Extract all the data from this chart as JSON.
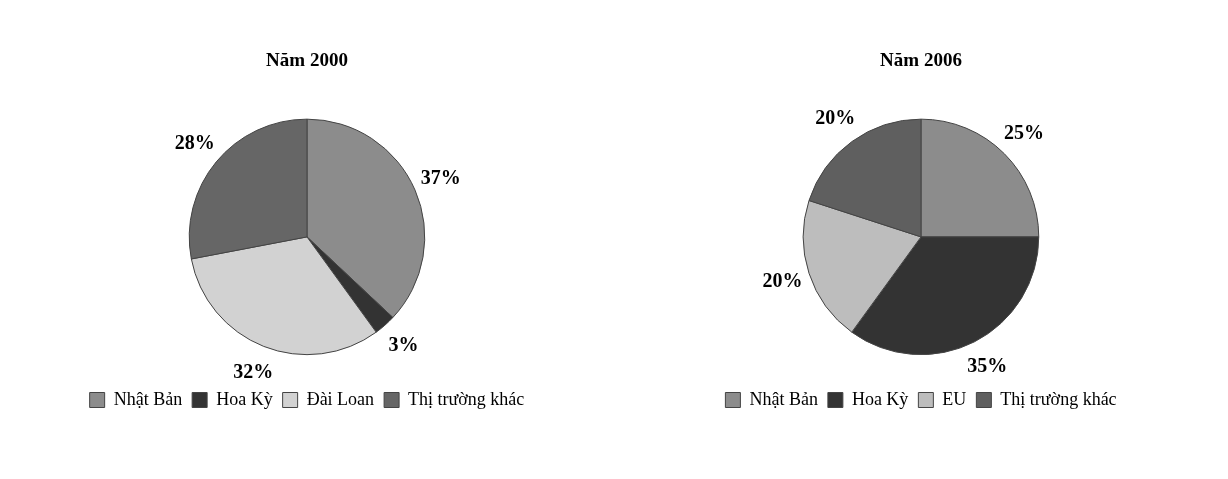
{
  "chart_data": [
    {
      "type": "pie",
      "title": "Năm 2000",
      "categories": [
        "Nhật Bản",
        "Hoa Kỳ",
        "Đài Loan",
        "Thị trường khác"
      ],
      "values": [
        37,
        3,
        32,
        28
      ],
      "value_labels": [
        "37%",
        "3%",
        "32%",
        "28%"
      ],
      "colors": [
        "#8c8c8c",
        "#333333",
        "#d2d2d2",
        "#666666"
      ],
      "legend": "bottom"
    },
    {
      "type": "pie",
      "title": "Năm 2006",
      "categories": [
        "Nhật Bản",
        "Hoa Kỳ",
        "EU",
        "Thị trường khác"
      ],
      "values": [
        25,
        35,
        20,
        20
      ],
      "value_labels": [
        "25%",
        "35%",
        "20%",
        "20%"
      ],
      "colors": [
        "#8c8c8c",
        "#333333",
        "#bdbdbd",
        "#5f5f5f"
      ],
      "legend": "bottom"
    }
  ]
}
